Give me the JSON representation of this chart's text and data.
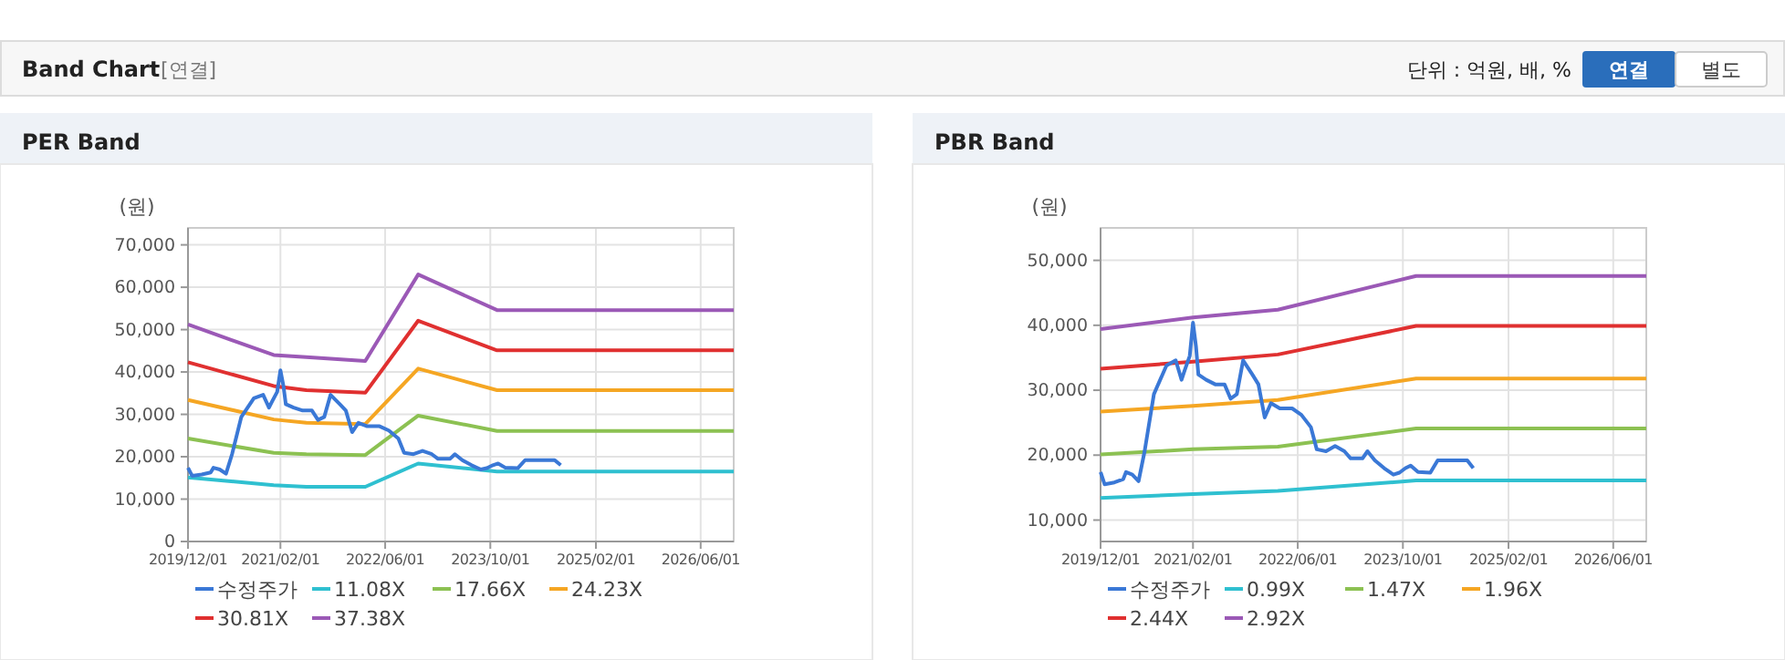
{
  "chart_data": [
    {
      "type": "other",
      "title": "Band Chart",
      "annotations": [
        "[연결]",
        "단위 : 억원, 배, %",
        "연결",
        "별도"
      ]
    },
    {
      "type": "line",
      "title": "PER Band",
      "ylabel": "(원)",
      "grid": true,
      "legend": "bottom",
      "marker": "none",
      "line_style": "solid",
      "xlim": [
        "2019-12-01",
        "2026-11-01"
      ],
      "xticks": [
        {
          "value": "2019-12-01",
          "label": "2019/12/01"
        },
        {
          "value": "2021-02-01",
          "label": "2021/02/01"
        },
        {
          "value": "2022-06-01",
          "label": "2022/06/01"
        },
        {
          "value": "2023-10-01",
          "label": "2023/10/01"
        },
        {
          "value": "2025-02-01",
          "label": "2025/02/01"
        },
        {
          "value": "2026-06-01",
          "label": "2026/06/01"
        }
      ],
      "ylim": [
        0,
        74000
      ],
      "yticks": [
        {
          "value": 0,
          "label": "0"
        },
        {
          "value": 10000,
          "label": "10,000"
        },
        {
          "value": 20000,
          "label": "20,000"
        },
        {
          "value": 30000,
          "label": "30,000"
        },
        {
          "value": 40000,
          "label": "40,000"
        },
        {
          "value": 50000,
          "label": "50,000"
        },
        {
          "value": 60000,
          "label": "60,000"
        },
        {
          "value": 70000,
          "label": "70,000"
        }
      ],
      "series": [
        {
          "name": "수정주가",
          "color": "#3a78d6",
          "x": [
            "2019-12-01",
            "2019-12-20",
            "2020-02-03",
            "2020-03-15",
            "2020-03-28",
            "2020-04-26",
            "2020-05-25",
            "2020-06-22",
            "2020-08-04",
            "2020-10-01",
            "2020-11-13",
            "2020-12-10",
            "2020-12-25",
            "2021-01-17",
            "2021-02-01",
            "2021-02-15",
            "2021-02-26",
            "2021-04-03",
            "2021-05-15",
            "2021-06-27",
            "2021-07-25",
            "2021-08-23",
            "2021-09-21",
            "2021-11-03",
            "2021-12-01",
            "2021-12-30",
            "2022-01-28",
            "2022-03-10",
            "2022-05-06",
            "2022-06-18",
            "2022-08-01",
            "2022-08-28",
            "2022-10-10",
            "2022-11-21",
            "2023-01-03",
            "2023-02-01",
            "2023-03-28",
            "2023-04-20",
            "2023-05-24",
            "2023-07-06",
            "2023-08-18",
            "2023-09-15",
            "2023-10-13",
            "2023-11-06",
            "2023-12-10",
            "2024-02-05",
            "2024-03-10",
            "2024-05-28",
            "2024-07-25",
            "2024-08-22"
          ],
          "values": [
            17400,
            15500,
            15800,
            16300,
            17400,
            17000,
            16000,
            20600,
            29400,
            33800,
            34600,
            31600,
            33100,
            35300,
            40400,
            36700,
            32400,
            31600,
            30900,
            30900,
            28700,
            29400,
            34600,
            32400,
            30900,
            25800,
            28000,
            27200,
            27200,
            26200,
            24300,
            20900,
            20600,
            21400,
            20600,
            19500,
            19500,
            20600,
            19200,
            18000,
            17000,
            17300,
            18000,
            18400,
            17400,
            17300,
            19200,
            19200,
            19200,
            18000
          ]
        },
        {
          "name": "11.08X",
          "color": "#2fc0d0",
          "x": [
            "2019-12-01",
            "2021-01-01",
            "2021-06-01",
            "2022-03-01",
            "2022-11-01",
            "2023-11-01",
            "2026-11-01"
          ],
          "values": [
            15100,
            13300,
            12900,
            12900,
            18400,
            16500,
            16500
          ]
        },
        {
          "name": "17.66X",
          "color": "#8cc152",
          "x": [
            "2019-12-01",
            "2021-01-01",
            "2021-06-01",
            "2022-03-01",
            "2022-11-01",
            "2023-11-01",
            "2026-11-01"
          ],
          "values": [
            24300,
            20900,
            20600,
            20400,
            29700,
            26100,
            26100
          ]
        },
        {
          "name": "24.23X",
          "color": "#f5a623",
          "x": [
            "2019-12-01",
            "2021-01-01",
            "2021-06-01",
            "2022-03-01",
            "2022-11-01",
            "2023-11-01",
            "2026-11-01"
          ],
          "values": [
            33400,
            28800,
            28000,
            27700,
            40800,
            35700,
            35700
          ]
        },
        {
          "name": "30.81X",
          "color": "#e03030",
          "x": [
            "2019-12-01",
            "2021-01-01",
            "2021-06-01",
            "2022-03-01",
            "2022-11-01",
            "2023-11-01",
            "2026-11-01"
          ],
          "values": [
            42300,
            36700,
            35700,
            35100,
            52100,
            45100,
            45100
          ]
        },
        {
          "name": "37.38X",
          "color": "#9b59b6",
          "x": [
            "2019-12-01",
            "2021-01-01",
            "2021-06-01",
            "2022-03-01",
            "2022-11-01",
            "2023-11-01",
            "2026-11-01"
          ],
          "values": [
            51200,
            44000,
            43500,
            42600,
            63000,
            54600,
            54600
          ]
        }
      ]
    },
    {
      "type": "line",
      "title": "PBR Band",
      "ylabel": "(원)",
      "grid": true,
      "legend": "bottom",
      "marker": "none",
      "line_style": "solid",
      "xlim": [
        "2019-12-01",
        "2026-11-01"
      ],
      "xticks": [
        {
          "value": "2019-12-01",
          "label": "2019/12/01"
        },
        {
          "value": "2021-02-01",
          "label": "2021/02/01"
        },
        {
          "value": "2022-06-01",
          "label": "2022/06/01"
        },
        {
          "value": "2023-10-01",
          "label": "2023/10/01"
        },
        {
          "value": "2025-02-01",
          "label": "2025/02/01"
        },
        {
          "value": "2026-06-01",
          "label": "2026/06/01"
        }
      ],
      "ylim": [
        6700,
        55000
      ],
      "yticks": [
        {
          "value": 10000,
          "label": "10,000"
        },
        {
          "value": 20000,
          "label": "20,000"
        },
        {
          "value": 30000,
          "label": "30,000"
        },
        {
          "value": 40000,
          "label": "40,000"
        },
        {
          "value": 50000,
          "label": "50,000"
        }
      ],
      "series": [
        {
          "name": "수정주가",
          "color": "#3a78d6",
          "x": [
            "2019-12-01",
            "2019-12-20",
            "2020-02-03",
            "2020-03-15",
            "2020-03-28",
            "2020-04-26",
            "2020-05-25",
            "2020-06-22",
            "2020-08-04",
            "2020-10-01",
            "2020-11-13",
            "2020-12-10",
            "2020-12-25",
            "2021-01-17",
            "2021-02-01",
            "2021-02-15",
            "2021-02-26",
            "2021-04-03",
            "2021-05-15",
            "2021-06-27",
            "2021-07-25",
            "2021-08-23",
            "2021-09-21",
            "2021-11-03",
            "2021-12-01",
            "2021-12-30",
            "2022-01-28",
            "2022-03-10",
            "2022-05-06",
            "2022-06-18",
            "2022-08-01",
            "2022-08-28",
            "2022-10-10",
            "2022-11-21",
            "2023-01-03",
            "2023-02-01",
            "2023-03-28",
            "2023-04-20",
            "2023-05-24",
            "2023-07-06",
            "2023-08-18",
            "2023-09-15",
            "2023-10-13",
            "2023-11-06",
            "2023-12-10",
            "2024-02-05",
            "2024-03-10",
            "2024-05-28",
            "2024-07-25",
            "2024-08-22"
          ],
          "values": [
            17400,
            15500,
            15800,
            16300,
            17400,
            17000,
            16000,
            20600,
            29400,
            33800,
            34600,
            31600,
            33100,
            35300,
            40400,
            36700,
            32400,
            31600,
            30900,
            30900,
            28700,
            29400,
            34600,
            32400,
            30900,
            25800,
            28000,
            27200,
            27200,
            26200,
            24300,
            20900,
            20600,
            21400,
            20600,
            19500,
            19500,
            20600,
            19200,
            18000,
            17000,
            17300,
            18000,
            18400,
            17400,
            17300,
            19200,
            19200,
            19200,
            18000
          ]
        },
        {
          "name": "0.99X",
          "color": "#2fc0d0",
          "x": [
            "2019-12-01",
            "2021-02-01",
            "2022-03-01",
            "2023-12-01",
            "2026-11-01"
          ],
          "values": [
            13400,
            14000,
            14500,
            16100,
            16100
          ]
        },
        {
          "name": "1.47X",
          "color": "#8cc152",
          "x": [
            "2019-12-01",
            "2021-02-01",
            "2022-03-01",
            "2023-12-01",
            "2026-11-01"
          ],
          "values": [
            20100,
            20900,
            21300,
            24100,
            24100
          ]
        },
        {
          "name": "1.96X",
          "color": "#f5a623",
          "x": [
            "2019-12-01",
            "2021-02-01",
            "2022-03-01",
            "2023-12-01",
            "2026-11-01"
          ],
          "values": [
            26700,
            27600,
            28500,
            31800,
            31800
          ]
        },
        {
          "name": "2.44X",
          "color": "#e03030",
          "x": [
            "2019-12-01",
            "2021-02-01",
            "2022-03-01",
            "2023-12-01",
            "2026-11-01"
          ],
          "values": [
            33300,
            34400,
            35500,
            39900,
            39900
          ]
        },
        {
          "name": "2.92X",
          "color": "#9b59b6",
          "x": [
            "2019-12-01",
            "2021-02-01",
            "2022-03-01",
            "2023-12-01",
            "2026-11-01"
          ],
          "values": [
            39400,
            41200,
            42400,
            47600,
            47600
          ]
        }
      ]
    }
  ]
}
